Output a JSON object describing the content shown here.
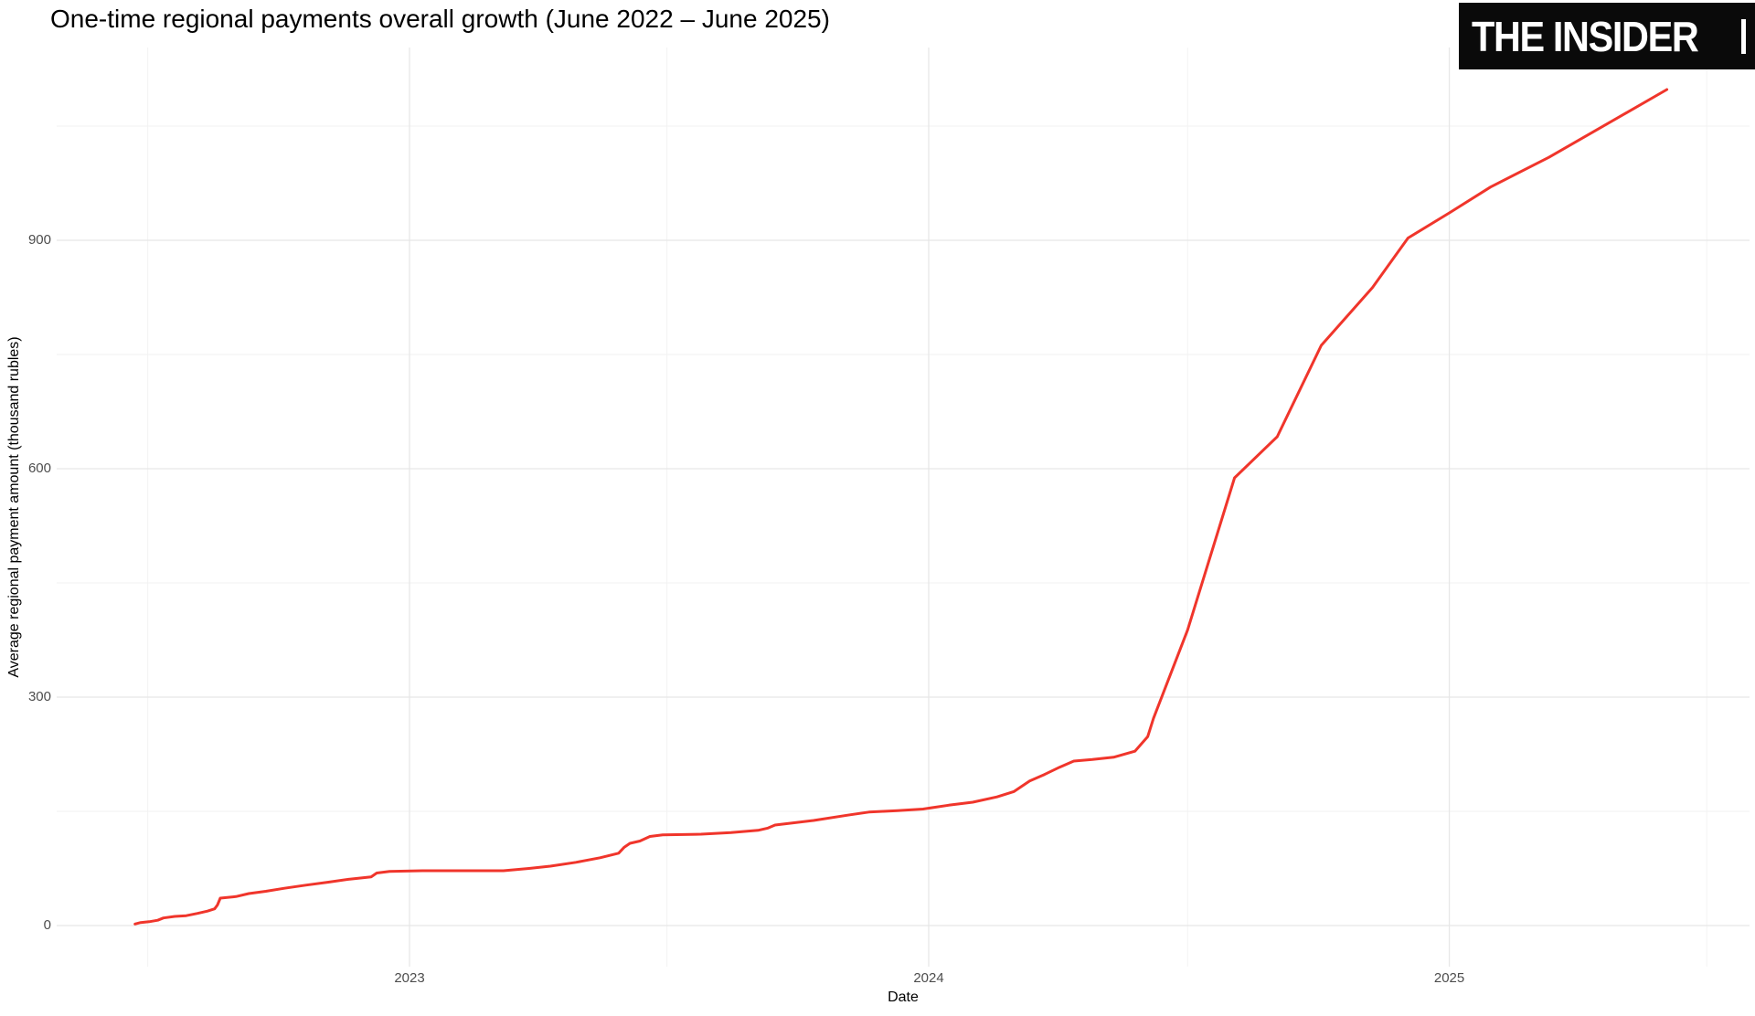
{
  "title": "One-time regional payments overall growth (June 2022 – June 2025)",
  "logo": {
    "text": "THE INSIDER"
  },
  "colors": {
    "line": "#f0352b",
    "grid_major": "#e7e7e7",
    "grid_minor": "#f2f2f2",
    "axis_text": "#4d4d4d",
    "logo_bg": "#0a0a0a",
    "logo_fg": "#ffffff"
  },
  "chart_data": {
    "type": "line",
    "title": "One-time regional payments overall growth (June 2022 – June 2025)",
    "xlabel": "Date",
    "ylabel": "Average regional payment amount (thousand rubles)",
    "x_tick_labels": [
      "2023",
      "2024",
      "2025"
    ],
    "x_major_ticks": [
      "2023-01-01",
      "2024-01-01",
      "2025-01-01"
    ],
    "x_minor_ticks": [
      "2022-07-01",
      "2023-07-01",
      "2024-07-01",
      "2025-07-01"
    ],
    "y_major_ticks": [
      0,
      300,
      600,
      900
    ],
    "y_minor_ticks": [
      150,
      450,
      750,
      1050
    ],
    "ylim": [
      0,
      1150
    ],
    "x_range": [
      "2022-06-22",
      "2025-06-03"
    ],
    "grid": "major and minor, light gray, no axis ticks",
    "legend": "none",
    "series": [
      {
        "name": "Average regional payment amount (thousand rubles)",
        "color": "#f0352b",
        "points": [
          [
            "2022-06-22",
            2
          ],
          [
            "2022-06-26",
            4
          ],
          [
            "2022-07-02",
            5
          ],
          [
            "2022-07-08",
            7
          ],
          [
            "2022-07-12",
            10
          ],
          [
            "2022-07-20",
            12
          ],
          [
            "2022-07-28",
            13
          ],
          [
            "2022-08-05",
            16
          ],
          [
            "2022-08-12",
            19
          ],
          [
            "2022-08-17",
            22
          ],
          [
            "2022-08-19",
            27
          ],
          [
            "2022-08-21",
            36
          ],
          [
            "2022-09-01",
            38
          ],
          [
            "2022-09-10",
            42
          ],
          [
            "2022-09-22",
            45
          ],
          [
            "2022-10-05",
            49
          ],
          [
            "2022-10-20",
            53
          ],
          [
            "2022-11-05",
            57
          ],
          [
            "2022-11-20",
            61
          ],
          [
            "2022-12-05",
            64
          ],
          [
            "2022-12-09",
            69
          ],
          [
            "2022-12-18",
            71
          ],
          [
            "2023-01-10",
            72
          ],
          [
            "2023-03-08",
            72
          ],
          [
            "2023-03-26",
            75
          ],
          [
            "2023-04-10",
            78
          ],
          [
            "2023-04-28",
            83
          ],
          [
            "2023-05-15",
            89
          ],
          [
            "2023-05-28",
            95
          ],
          [
            "2023-06-01",
            103
          ],
          [
            "2023-06-05",
            108
          ],
          [
            "2023-06-12",
            111
          ],
          [
            "2023-06-19",
            117
          ],
          [
            "2023-06-28",
            119
          ],
          [
            "2023-07-25",
            120
          ],
          [
            "2023-08-15",
            122
          ],
          [
            "2023-09-03",
            125
          ],
          [
            "2023-09-10",
            128
          ],
          [
            "2023-09-15",
            132
          ],
          [
            "2023-10-12",
            138
          ],
          [
            "2023-11-05",
            145
          ],
          [
            "2023-11-20",
            149
          ],
          [
            "2023-12-10",
            151
          ],
          [
            "2023-12-28",
            153
          ],
          [
            "2024-01-15",
            158
          ],
          [
            "2024-02-01",
            162
          ],
          [
            "2024-02-18",
            169
          ],
          [
            "2024-03-01",
            176
          ],
          [
            "2024-03-12",
            190
          ],
          [
            "2024-03-22",
            198
          ],
          [
            "2024-04-02",
            208
          ],
          [
            "2024-04-12",
            216
          ],
          [
            "2024-04-25",
            218
          ],
          [
            "2024-05-10",
            221
          ],
          [
            "2024-05-25",
            229
          ],
          [
            "2024-06-03",
            248
          ],
          [
            "2024-06-07",
            272
          ],
          [
            "2024-07-01",
            388
          ],
          [
            "2024-08-03",
            588
          ],
          [
            "2024-09-02",
            642
          ],
          [
            "2024-10-03",
            762
          ],
          [
            "2024-11-08",
            838
          ],
          [
            "2024-12-03",
            903
          ],
          [
            "2025-01-01",
            936
          ],
          [
            "2025-01-30",
            970
          ],
          [
            "2025-03-12",
            1009
          ],
          [
            "2025-06-03",
            1098
          ]
        ]
      }
    ]
  }
}
